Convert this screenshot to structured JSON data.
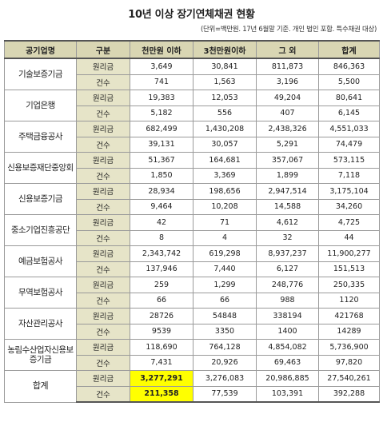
{
  "title": "10년 이상 장기연체채권 현황",
  "note": "(단위=백만원. 17년 6월말 기준. 개인 법인 포함. 특수채권 대상)",
  "headers": [
    "공기업명",
    "구분",
    "천만원 이하",
    "3천만원이하",
    "그 외",
    "합계"
  ],
  "rows": [
    {
      "org": "기술보증기금",
      "principal": [
        "3,649",
        "30,841",
        "811,873",
        "846,363"
      ],
      "count": [
        "741",
        "1,563",
        "3,196",
        "5,500"
      ]
    },
    {
      "org": "기업은행",
      "principal": [
        "19,383",
        "12,053",
        "49,204",
        "80,641"
      ],
      "count": [
        "5,182",
        "556",
        "407",
        "6,145"
      ]
    },
    {
      "org": "주택금융공사",
      "principal": [
        "682,499",
        "1,430,208",
        "2,438,326",
        "4,551,033"
      ],
      "count": [
        "39,131",
        "30,057",
        "5,291",
        "74,479"
      ]
    },
    {
      "org": "신용보증재단중앙회",
      "principal": [
        "51,367",
        "164,681",
        "357,067",
        "573,115"
      ],
      "count": [
        "1,850",
        "3,369",
        "1,899",
        "7,118"
      ]
    },
    {
      "org": "신용보증기금",
      "principal": [
        "28,934",
        "198,656",
        "2,947,514",
        "3,175,104"
      ],
      "count": [
        "9,464",
        "10,208",
        "14,588",
        "34,260"
      ]
    },
    {
      "org": "중소기업진흥공단",
      "principal": [
        "42",
        "71",
        "4,612",
        "4,725"
      ],
      "count": [
        "8",
        "4",
        "32",
        "44"
      ]
    },
    {
      "org": "예금보험공사",
      "principal": [
        "2,343,742",
        "619,298",
        "8,937,237",
        "11,900,277"
      ],
      "count": [
        "137,946",
        "7,440",
        "6,127",
        "151,513"
      ]
    },
    {
      "org": "무역보험공사",
      "principal": [
        "259",
        "1,299",
        "248,776",
        "250,335"
      ],
      "count": [
        "66",
        "66",
        "988",
        "1120"
      ]
    },
    {
      "org": "자산관리공사",
      "principal": [
        "28726",
        "54848",
        "338194",
        "421768"
      ],
      "count": [
        "9539",
        "3350",
        "1400",
        "14289"
      ]
    },
    {
      "org": "농림수산업자신용보증기금",
      "principal": [
        "118,690",
        "764,128",
        "4,854,082",
        "5,736,900"
      ],
      "count": [
        "7,431",
        "20,926",
        "69,463",
        "97,820"
      ]
    }
  ],
  "total": {
    "org": "합계",
    "principal": [
      "3,277,291",
      "3,276,083",
      "20,986,885",
      "27,540,261"
    ],
    "count": [
      "211,358",
      "77,539",
      "103,391",
      "392,288"
    ]
  },
  "labels": {
    "principal": "원리금",
    "count": "건수"
  },
  "colors": {
    "header_bg": "#d9d6b3",
    "kind_bg": "#e6e4c8",
    "highlight": "#ffff00"
  }
}
